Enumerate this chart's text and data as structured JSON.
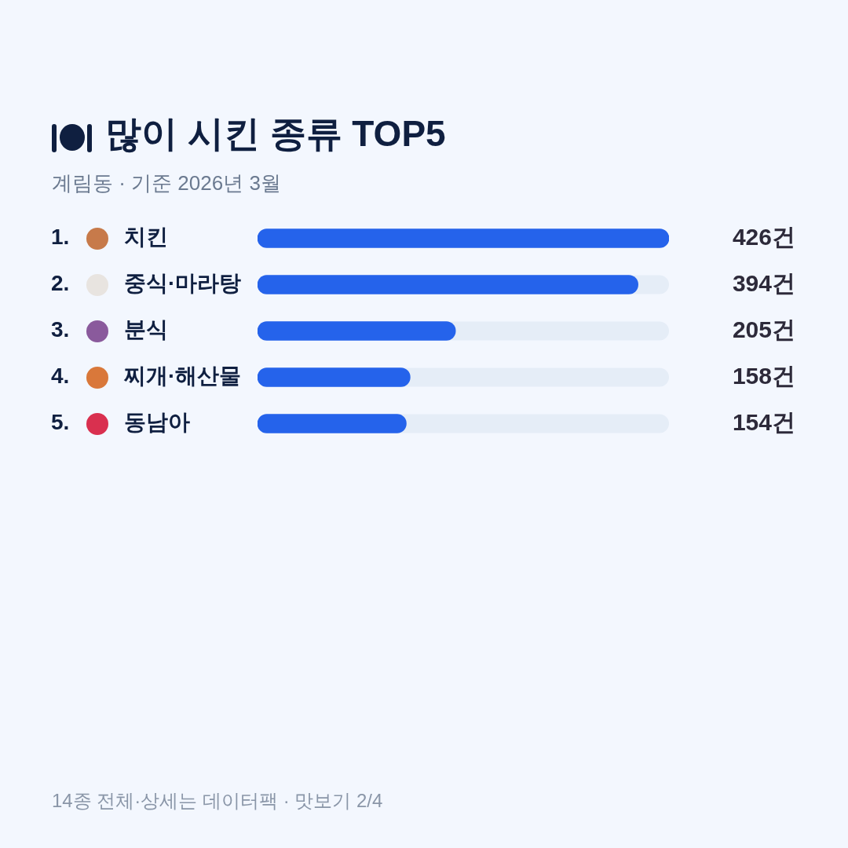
{
  "chart_data": {
    "type": "bar",
    "orientation": "horizontal",
    "title": "많이 시킨 종류 TOP5",
    "subtitle": "계림동 · 기준 2026년 3월",
    "categories": [
      "1. 치킨",
      "2. 중식·마라탕",
      "3. 분식",
      "4. 찌개·해산물",
      "5. 동남아"
    ],
    "values": [
      426,
      394,
      205,
      158,
      154
    ],
    "value_labels": [
      "426건",
      "394건",
      "205건",
      "158건",
      "154건"
    ],
    "color": "#2563eb",
    "xlim": [
      0,
      426
    ],
    "tick_labels": "y",
    "legend": false,
    "annotations": [
      "14종 전체·상세는 데이터팩 · 맛보기 2/4"
    ]
  }
}
